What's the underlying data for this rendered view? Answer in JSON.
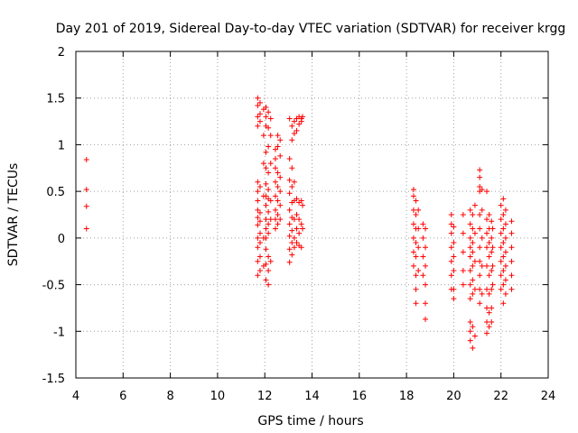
{
  "chart_data": {
    "type": "scatter",
    "title": "Day 201 of 2019, Sidereal Day-to-day VTEC variation (SDTVAR) for receiver krgg",
    "xlabel": "GPS time / hours",
    "ylabel": "SDTVAR / TECUs",
    "xlim": [
      4,
      24
    ],
    "ylim": [
      -1.5,
      2
    ],
    "xticks": [
      4,
      6,
      8,
      10,
      12,
      14,
      16,
      18,
      20,
      22,
      24
    ],
    "yticks": [
      -1.5,
      -1,
      -0.5,
      0,
      0.5,
      1,
      1.5,
      2
    ],
    "xtick_labels": [
      "4",
      "6",
      "8",
      "10",
      "12",
      "14",
      "16",
      "18",
      "20",
      "22",
      "24"
    ],
    "ytick_labels": [
      "-1.5",
      "-1",
      "-0.5",
      "0",
      "0.5",
      "1",
      "1.5",
      "2"
    ],
    "grid": true,
    "marker": "+",
    "color": "#ff0000",
    "series": [
      {
        "name": "SDTVAR",
        "points": [
          [
            4.45,
            0.84
          ],
          [
            4.45,
            0.52
          ],
          [
            4.45,
            0.34
          ],
          [
            4.45,
            0.1
          ],
          [
            11.7,
            1.5
          ],
          [
            11.7,
            1.42
          ],
          [
            11.7,
            1.3
          ],
          [
            11.7,
            1.2
          ],
          [
            11.7,
            0.6
          ],
          [
            11.7,
            0.5
          ],
          [
            11.7,
            0.4
          ],
          [
            11.7,
            0.3
          ],
          [
            11.7,
            0.22
          ],
          [
            11.7,
            0.14
          ],
          [
            11.7,
            0.0
          ],
          [
            11.7,
            -0.1
          ],
          [
            11.7,
            -0.25
          ],
          [
            11.7,
            -0.4
          ],
          [
            11.8,
            1.45
          ],
          [
            11.8,
            1.33
          ],
          [
            11.8,
            1.25
          ],
          [
            11.8,
            0.55
          ],
          [
            11.8,
            0.27
          ],
          [
            11.8,
            0.18
          ],
          [
            11.8,
            0.05
          ],
          [
            11.8,
            -0.05
          ],
          [
            11.8,
            -0.2
          ],
          [
            11.8,
            -0.35
          ],
          [
            11.95,
            1.38
          ],
          [
            11.95,
            1.1
          ],
          [
            11.95,
            0.8
          ],
          [
            11.95,
            0.45
          ],
          [
            11.95,
            0.0
          ],
          [
            11.95,
            -0.3
          ],
          [
            12.05,
            1.4
          ],
          [
            12.05,
            1.3
          ],
          [
            12.05,
            1.2
          ],
          [
            12.05,
            0.92
          ],
          [
            12.05,
            0.75
          ],
          [
            12.05,
            0.58
          ],
          [
            12.05,
            0.45
          ],
          [
            12.05,
            0.35
          ],
          [
            12.05,
            0.2
          ],
          [
            12.05,
            0.1
          ],
          [
            12.05,
            0.0
          ],
          [
            12.05,
            -0.12
          ],
          [
            12.05,
            -0.28
          ],
          [
            12.05,
            -0.45
          ],
          [
            12.15,
            1.35
          ],
          [
            12.15,
            1.18
          ],
          [
            12.15,
            0.98
          ],
          [
            12.15,
            0.7
          ],
          [
            12.15,
            0.52
          ],
          [
            12.15,
            0.42
          ],
          [
            12.15,
            0.28
          ],
          [
            12.15,
            0.15
          ],
          [
            12.15,
            0.05
          ],
          [
            12.15,
            -0.2
          ],
          [
            12.15,
            -0.35
          ],
          [
            12.15,
            -0.5
          ],
          [
            12.25,
            1.28
          ],
          [
            12.25,
            1.1
          ],
          [
            12.25,
            0.8
          ],
          [
            12.25,
            0.4
          ],
          [
            12.25,
            0.2
          ],
          [
            12.25,
            -0.25
          ],
          [
            12.45,
            0.95
          ],
          [
            12.45,
            0.85
          ],
          [
            12.45,
            0.75
          ],
          [
            12.45,
            0.6
          ],
          [
            12.45,
            0.45
          ],
          [
            12.45,
            0.3
          ],
          [
            12.45,
            0.2
          ],
          [
            12.45,
            0.1
          ],
          [
            12.55,
            1.1
          ],
          [
            12.55,
            0.98
          ],
          [
            12.55,
            0.7
          ],
          [
            12.55,
            0.55
          ],
          [
            12.55,
            0.4
          ],
          [
            12.55,
            0.25
          ],
          [
            12.55,
            0.15
          ],
          [
            12.65,
            1.05
          ],
          [
            12.65,
            0.88
          ],
          [
            12.65,
            0.65
          ],
          [
            12.65,
            0.5
          ],
          [
            12.65,
            0.35
          ],
          [
            12.65,
            0.2
          ],
          [
            13.05,
            1.28
          ],
          [
            13.05,
            0.85
          ],
          [
            13.05,
            0.62
          ],
          [
            13.05,
            0.48
          ],
          [
            13.05,
            0.3
          ],
          [
            13.05,
            0.15
          ],
          [
            13.05,
            0.02
          ],
          [
            13.05,
            -0.12
          ],
          [
            13.05,
            -0.26
          ],
          [
            13.15,
            1.2
          ],
          [
            13.15,
            1.05
          ],
          [
            13.15,
            0.75
          ],
          [
            13.15,
            0.55
          ],
          [
            13.15,
            0.38
          ],
          [
            13.15,
            0.22
          ],
          [
            13.15,
            0.08
          ],
          [
            13.15,
            -0.05
          ],
          [
            13.15,
            -0.18
          ],
          [
            13.25,
            1.25
          ],
          [
            13.25,
            1.12
          ],
          [
            13.25,
            0.6
          ],
          [
            13.25,
            0.4
          ],
          [
            13.25,
            0.2
          ],
          [
            13.25,
            0.0
          ],
          [
            13.25,
            -0.1
          ],
          [
            13.35,
            1.28
          ],
          [
            13.35,
            1.15
          ],
          [
            13.35,
            0.42
          ],
          [
            13.35,
            0.25
          ],
          [
            13.35,
            0.1
          ],
          [
            13.35,
            -0.05
          ],
          [
            13.45,
            1.3
          ],
          [
            13.45,
            1.22
          ],
          [
            13.45,
            0.38
          ],
          [
            13.45,
            0.2
          ],
          [
            13.45,
            0.05
          ],
          [
            13.45,
            -0.08
          ],
          [
            13.55,
            1.28
          ],
          [
            13.55,
            1.25
          ],
          [
            13.55,
            0.4
          ],
          [
            13.55,
            0.15
          ],
          [
            13.55,
            -0.1
          ],
          [
            13.6,
            1.3
          ],
          [
            13.6,
            0.35
          ],
          [
            13.6,
            0.1
          ],
          [
            18.3,
            0.52
          ],
          [
            18.3,
            0.45
          ],
          [
            18.3,
            0.3
          ],
          [
            18.3,
            0.15
          ],
          [
            18.3,
            0.0
          ],
          [
            18.3,
            -0.15
          ],
          [
            18.3,
            -0.3
          ],
          [
            18.4,
            0.4
          ],
          [
            18.4,
            0.25
          ],
          [
            18.4,
            0.1
          ],
          [
            18.4,
            -0.05
          ],
          [
            18.4,
            -0.2
          ],
          [
            18.4,
            -0.4
          ],
          [
            18.4,
            -0.55
          ],
          [
            18.4,
            -0.7
          ],
          [
            18.5,
            0.3
          ],
          [
            18.5,
            0.1
          ],
          [
            18.5,
            -0.1
          ],
          [
            18.5,
            -0.35
          ],
          [
            18.7,
            0.15
          ],
          [
            18.7,
            0.0
          ],
          [
            18.7,
            -0.2
          ],
          [
            18.7,
            -0.4
          ],
          [
            18.8,
            0.1
          ],
          [
            18.8,
            -0.1
          ],
          [
            18.8,
            -0.3
          ],
          [
            18.8,
            -0.5
          ],
          [
            18.8,
            -0.7
          ],
          [
            18.8,
            -0.87
          ],
          [
            19.9,
            0.25
          ],
          [
            19.9,
            0.15
          ],
          [
            19.9,
            0.05
          ],
          [
            19.9,
            -0.1
          ],
          [
            19.9,
            -0.25
          ],
          [
            19.9,
            -0.4
          ],
          [
            19.9,
            -0.55
          ],
          [
            20.0,
            0.12
          ],
          [
            20.0,
            -0.05
          ],
          [
            20.0,
            -0.2
          ],
          [
            20.0,
            -0.35
          ],
          [
            20.0,
            -0.55
          ],
          [
            20.0,
            -0.65
          ],
          [
            20.4,
            0.25
          ],
          [
            20.4,
            0.05
          ],
          [
            20.4,
            -0.15
          ],
          [
            20.4,
            -0.35
          ],
          [
            20.4,
            -0.5
          ],
          [
            20.7,
            0.3
          ],
          [
            20.7,
            0.15
          ],
          [
            20.7,
            0.0
          ],
          [
            20.7,
            -0.1
          ],
          [
            20.7,
            -0.2
          ],
          [
            20.7,
            -0.35
          ],
          [
            20.7,
            -0.5
          ],
          [
            20.7,
            -0.65
          ],
          [
            20.7,
            -0.9
          ],
          [
            20.7,
            -1.0
          ],
          [
            20.7,
            -1.1
          ],
          [
            20.8,
            0.25
          ],
          [
            20.8,
            0.1
          ],
          [
            20.8,
            -0.05
          ],
          [
            20.8,
            -0.15
          ],
          [
            20.8,
            -0.3
          ],
          [
            20.8,
            -0.45
          ],
          [
            20.8,
            -0.6
          ],
          [
            20.8,
            -0.95
          ],
          [
            20.8,
            -1.18
          ],
          [
            20.9,
            0.35
          ],
          [
            20.9,
            0.05
          ],
          [
            20.9,
            -0.25
          ],
          [
            20.9,
            -0.55
          ],
          [
            20.9,
            -1.05
          ],
          [
            21.1,
            0.73
          ],
          [
            21.1,
            0.65
          ],
          [
            21.1,
            0.55
          ],
          [
            21.1,
            0.5
          ],
          [
            21.1,
            0.25
          ],
          [
            21.1,
            0.1
          ],
          [
            21.1,
            -0.1
          ],
          [
            21.1,
            -0.25
          ],
          [
            21.1,
            -0.4
          ],
          [
            21.1,
            -0.55
          ],
          [
            21.1,
            -0.7
          ],
          [
            21.2,
            0.52
          ],
          [
            21.2,
            0.3
          ],
          [
            21.2,
            0.0
          ],
          [
            21.2,
            -0.3
          ],
          [
            21.2,
            -0.6
          ],
          [
            21.4,
            0.5
          ],
          [
            21.4,
            0.2
          ],
          [
            21.4,
            0.05
          ],
          [
            21.4,
            -0.1
          ],
          [
            21.4,
            -0.3
          ],
          [
            21.4,
            -0.55
          ],
          [
            21.4,
            -0.75
          ],
          [
            21.4,
            -0.9
          ],
          [
            21.4,
            -1.02
          ],
          [
            21.5,
            0.25
          ],
          [
            21.5,
            0.1
          ],
          [
            21.5,
            -0.05
          ],
          [
            21.5,
            -0.2
          ],
          [
            21.5,
            -0.4
          ],
          [
            21.5,
            -0.6
          ],
          [
            21.5,
            -0.8
          ],
          [
            21.5,
            -0.95
          ],
          [
            21.6,
            0.18
          ],
          [
            21.6,
            0.0
          ],
          [
            21.6,
            -0.15
          ],
          [
            21.6,
            -0.35
          ],
          [
            21.6,
            -0.55
          ],
          [
            21.6,
            -0.75
          ],
          [
            21.6,
            -0.9
          ],
          [
            21.65,
            0.1
          ],
          [
            21.65,
            -0.1
          ],
          [
            21.65,
            -0.3
          ],
          [
            21.65,
            -0.5
          ],
          [
            22.0,
            0.35
          ],
          [
            22.0,
            0.2
          ],
          [
            22.0,
            0.05
          ],
          [
            22.0,
            -0.1
          ],
          [
            22.0,
            -0.25
          ],
          [
            22.0,
            -0.4
          ],
          [
            22.0,
            -0.55
          ],
          [
            22.1,
            0.42
          ],
          [
            22.1,
            0.25
          ],
          [
            22.1,
            0.1
          ],
          [
            22.1,
            -0.05
          ],
          [
            22.1,
            -0.2
          ],
          [
            22.1,
            -0.35
          ],
          [
            22.1,
            -0.5
          ],
          [
            22.1,
            -0.7
          ],
          [
            22.2,
            0.3
          ],
          [
            22.2,
            0.15
          ],
          [
            22.2,
            0.0
          ],
          [
            22.2,
            -0.15
          ],
          [
            22.2,
            -0.3
          ],
          [
            22.2,
            -0.45
          ],
          [
            22.2,
            -0.6
          ],
          [
            22.45,
            0.18
          ],
          [
            22.45,
            0.05
          ],
          [
            22.45,
            -0.1
          ],
          [
            22.45,
            -0.25
          ],
          [
            22.45,
            -0.4
          ],
          [
            22.45,
            -0.55
          ]
        ]
      }
    ]
  }
}
